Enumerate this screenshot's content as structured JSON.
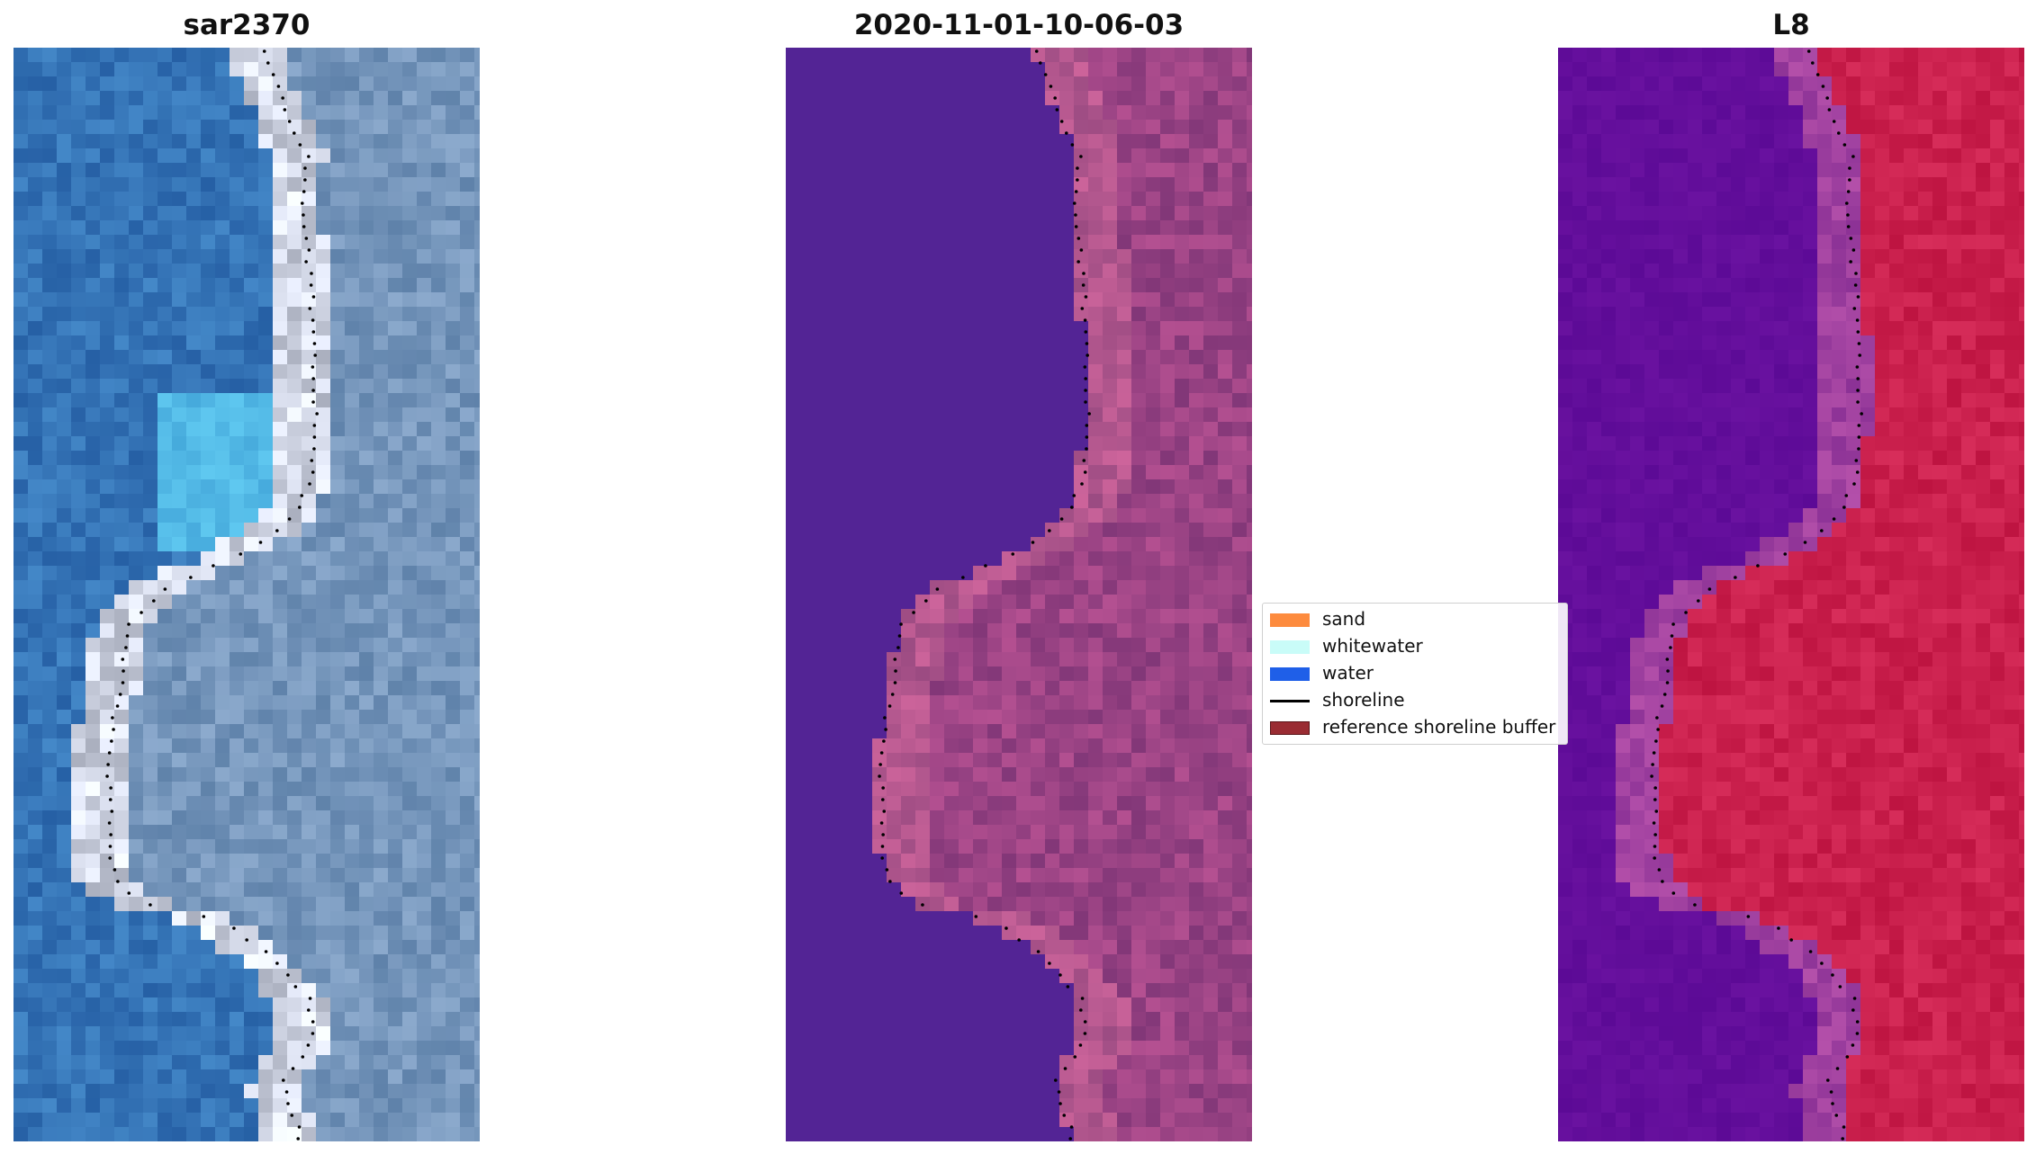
{
  "panels": [
    {
      "title": "sar2370",
      "style": "rgb"
    },
    {
      "title": "2020-11-01-10-06-03",
      "style": "class"
    },
    {
      "title": "L8",
      "style": "index"
    }
  ],
  "legend": {
    "items": [
      {
        "label": "sand",
        "color": "#fd8b3e",
        "kind": "patch"
      },
      {
        "label": "whitewater",
        "color": "#c9fcf8",
        "kind": "patch"
      },
      {
        "label": "water",
        "color": "#1f5fe8",
        "kind": "patch"
      },
      {
        "label": "shoreline",
        "color": "#000000",
        "kind": "line"
      },
      {
        "label": "reference shoreline buffer",
        "color": "#9a2c33",
        "kind": "patch"
      }
    ]
  },
  "colors": {
    "water_rgb": "#2f68ad",
    "shallow_rgb": "#4db7e4",
    "beach_rgb": "#c7d8e6",
    "class_water": "#532495",
    "class_land": "#8a3e7e",
    "index_water": "#600a98",
    "index_land": "#c51646"
  }
}
